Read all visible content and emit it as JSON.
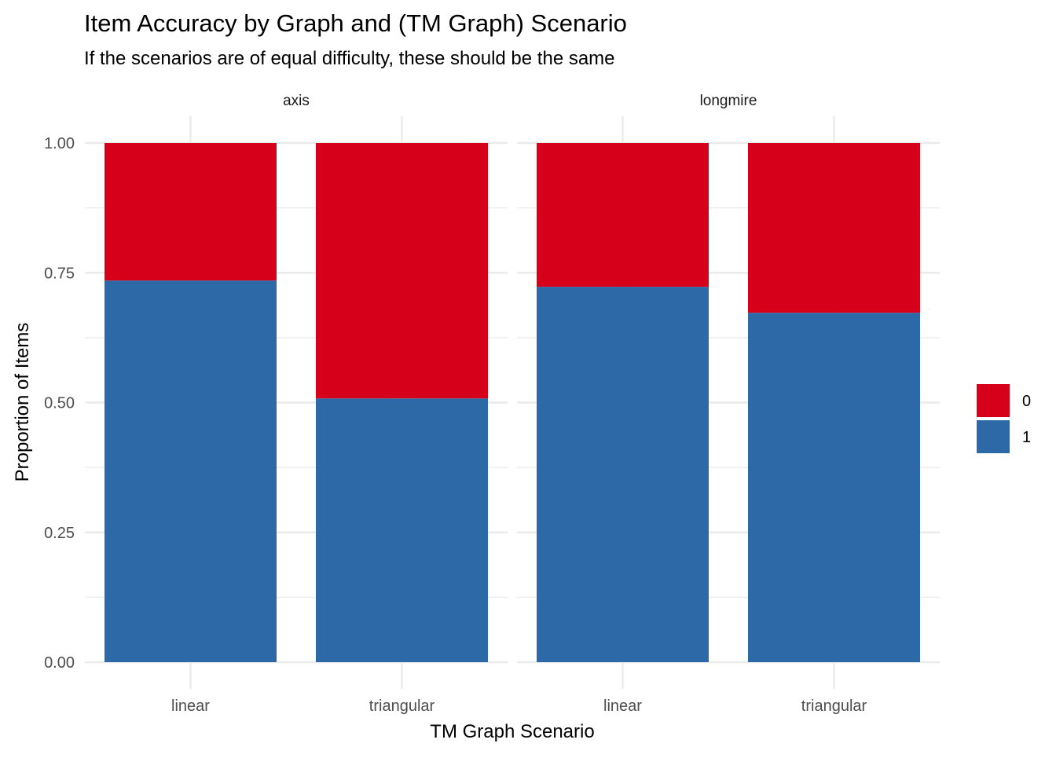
{
  "chart_data": {
    "type": "bar",
    "stacked": true,
    "normalized": true,
    "title": "Item Accuracy by Graph and (TM Graph) Scenario",
    "subtitle": "If the scenarios are of equal difficulty, these should be the same",
    "xlabel": "TM Graph Scenario",
    "ylabel": "Proportion of Items",
    "ylim": [
      0,
      1
    ],
    "y_ticks": [
      "0.00",
      "0.25",
      "0.50",
      "0.75",
      "1.00"
    ],
    "y_tick_values": [
      0,
      0.25,
      0.5,
      0.75,
      1
    ],
    "grid": true,
    "legend_position": "right",
    "legend": [
      {
        "label": "0",
        "color": "#D7001A"
      },
      {
        "label": "1",
        "color": "#2D69A7"
      }
    ],
    "categories": [
      "linear",
      "triangular"
    ],
    "facets": [
      {
        "name": "axis",
        "series": [
          {
            "name": "1",
            "values": [
              0.735,
              0.508
            ]
          },
          {
            "name": "0",
            "values": [
              0.265,
              0.492
            ]
          }
        ]
      },
      {
        "name": "longmire",
        "series": [
          {
            "name": "1",
            "values": [
              0.723,
              0.673
            ]
          },
          {
            "name": "0",
            "values": [
              0.277,
              0.327
            ]
          }
        ]
      }
    ]
  },
  "colors": {
    "series_0": "#D7001A",
    "series_1": "#2D69A7",
    "grid": "#EBEBEB",
    "text": "#000000",
    "tick_text": "#4D4D4D"
  }
}
